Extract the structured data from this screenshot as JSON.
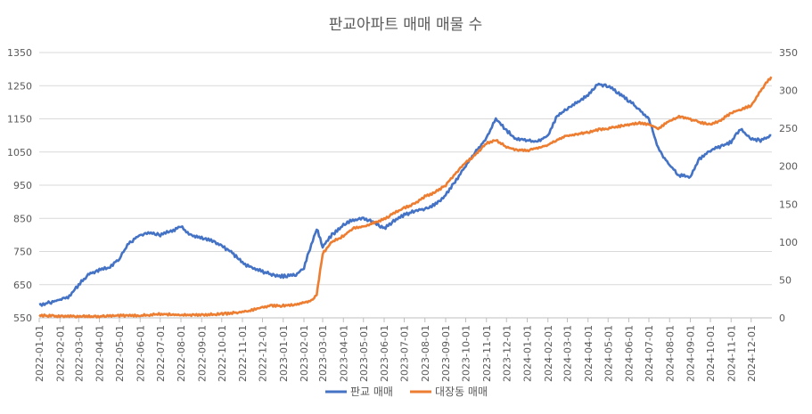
{
  "chart_data": {
    "type": "line",
    "title": "판교아파트 매매 매물 수",
    "x_tick_labels": [
      "2022-01-01",
      "2022-02-01",
      "2022-03-01",
      "2022-04-01",
      "2022-05-01",
      "2022-06-01",
      "2022-07-01",
      "2022-08-01",
      "2022-09-01",
      "2022-10-01",
      "2022-11-01",
      "2022-12-01",
      "2023-01-01",
      "2023-02-01",
      "2023-03-01",
      "2023-04-01",
      "2023-05-01",
      "2023-06-01",
      "2023-07-01",
      "2023-08-01",
      "2023-09-01",
      "2023-10-01",
      "2023-11-01",
      "2023-12-01",
      "2024-01-01",
      "2024-02-01",
      "2024-03-01",
      "2024-04-01",
      "2024-05-01",
      "2024-06-01",
      "2024-07-01",
      "2024-08-01",
      "2024-09-01",
      "2024-10-01",
      "2024-11-01",
      "2024-12-01"
    ],
    "y_left": {
      "range": [
        550,
        1350
      ],
      "ticks": [
        550,
        650,
        750,
        850,
        950,
        1050,
        1150,
        1250,
        1350
      ]
    },
    "y_right": {
      "range": [
        0,
        350
      ],
      "ticks": [
        0,
        50,
        100,
        150,
        200,
        250,
        300,
        350
      ]
    },
    "legend_position": "bottom",
    "series": [
      {
        "name": "판교 매매",
        "axis": "left",
        "color": "#4472C4",
        "x": [
          "2022-01-01",
          "2022-01-15",
          "2022-02-01",
          "2022-02-15",
          "2022-03-01",
          "2022-03-15",
          "2022-04-01",
          "2022-04-15",
          "2022-05-01",
          "2022-05-15",
          "2022-06-01",
          "2022-06-15",
          "2022-07-01",
          "2022-07-15",
          "2022-08-01",
          "2022-08-15",
          "2022-09-01",
          "2022-09-15",
          "2022-10-01",
          "2022-10-15",
          "2022-11-01",
          "2022-11-15",
          "2022-12-01",
          "2022-12-15",
          "2023-01-01",
          "2023-01-20",
          "2023-02-01",
          "2023-02-10",
          "2023-02-20",
          "2023-03-01",
          "2023-03-15",
          "2023-04-01",
          "2023-04-15",
          "2023-05-01",
          "2023-05-15",
          "2023-06-01",
          "2023-06-15",
          "2023-07-01",
          "2023-07-15",
          "2023-08-01",
          "2023-08-15",
          "2023-09-01",
          "2023-09-15",
          "2023-10-01",
          "2023-10-15",
          "2023-11-01",
          "2023-11-15",
          "2023-12-01",
          "2023-12-15",
          "2024-01-01",
          "2024-01-15",
          "2024-02-01",
          "2024-02-15",
          "2024-03-01",
          "2024-03-15",
          "2024-04-01",
          "2024-04-15",
          "2024-05-01",
          "2024-05-15",
          "2024-06-01",
          "2024-06-15",
          "2024-07-01",
          "2024-07-15",
          "2024-08-01",
          "2024-08-15",
          "2024-09-01",
          "2024-09-15",
          "2024-10-01",
          "2024-10-15",
          "2024-11-01",
          "2024-11-15",
          "2024-12-01",
          "2024-12-15",
          "2024-12-31"
        ],
        "values": [
          590,
          595,
          605,
          615,
          650,
          680,
          695,
          700,
          730,
          775,
          800,
          805,
          800,
          810,
          825,
          800,
          790,
          785,
          765,
          750,
          715,
          700,
          690,
          680,
          675,
          680,
          700,
          760,
          820,
          765,
          800,
          830,
          845,
          850,
          840,
          820,
          840,
          860,
          870,
          880,
          890,
          920,
          960,
          1010,
          1050,
          1090,
          1150,
          1115,
          1090,
          1085,
          1080,
          1100,
          1160,
          1180,
          1200,
          1220,
          1255,
          1250,
          1230,
          1205,
          1180,
          1150,
          1060,
          1010,
          980,
          975,
          1030,
          1055,
          1065,
          1080,
          1120,
          1090,
          1085,
          1100
        ]
      },
      {
        "name": "대장동 매매",
        "axis": "right",
        "color": "#ED7D31",
        "x": [
          "2022-01-01",
          "2022-02-01",
          "2022-03-01",
          "2022-04-01",
          "2022-05-01",
          "2022-06-01",
          "2022-07-01",
          "2022-08-01",
          "2022-09-01",
          "2022-10-01",
          "2022-11-01",
          "2022-11-15",
          "2022-12-01",
          "2022-12-15",
          "2023-01-01",
          "2023-01-15",
          "2023-02-01",
          "2023-02-10",
          "2023-02-20",
          "2023-03-01",
          "2023-03-15",
          "2023-04-01",
          "2023-04-15",
          "2023-05-01",
          "2023-05-15",
          "2023-06-01",
          "2023-06-15",
          "2023-07-01",
          "2023-07-15",
          "2023-08-01",
          "2023-08-15",
          "2023-09-01",
          "2023-09-15",
          "2023-10-01",
          "2023-10-15",
          "2023-11-01",
          "2023-11-15",
          "2023-12-01",
          "2023-12-15",
          "2024-01-01",
          "2024-01-15",
          "2024-02-01",
          "2024-02-15",
          "2024-03-01",
          "2024-03-15",
          "2024-04-01",
          "2024-04-15",
          "2024-05-01",
          "2024-05-15",
          "2024-06-01",
          "2024-06-15",
          "2024-07-01",
          "2024-07-15",
          "2024-08-01",
          "2024-08-15",
          "2024-09-01",
          "2024-09-15",
          "2024-10-01",
          "2024-10-15",
          "2024-11-01",
          "2024-11-15",
          "2024-12-01",
          "2024-12-15",
          "2024-12-31"
        ],
        "values": [
          3,
          2,
          2,
          2,
          3,
          3,
          5,
          4,
          4,
          5,
          8,
          10,
          14,
          16,
          16,
          17,
          20,
          22,
          30,
          85,
          100,
          108,
          118,
          120,
          125,
          130,
          138,
          145,
          150,
          160,
          165,
          175,
          190,
          205,
          215,
          230,
          235,
          225,
          222,
          220,
          224,
          228,
          235,
          240,
          242,
          245,
          248,
          250,
          252,
          255,
          257,
          255,
          250,
          260,
          265,
          262,
          258,
          255,
          260,
          270,
          275,
          280,
          300,
          318
        ]
      }
    ]
  },
  "legend": {
    "items": [
      "판교 매매",
      "대장동 매매"
    ]
  }
}
